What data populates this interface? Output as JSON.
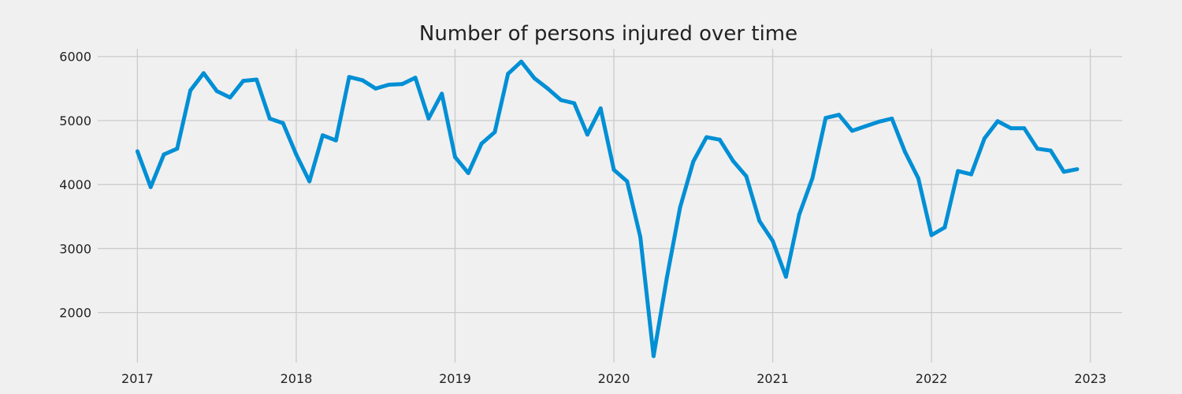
{
  "chart_data": {
    "type": "line",
    "title": "Number of persons injured over time",
    "xlabel": "",
    "ylabel": "",
    "x_ticks": [
      "2017",
      "2018",
      "2019",
      "2020",
      "2021",
      "2022",
      "2023"
    ],
    "y_ticks": [
      "2000",
      "3000",
      "4000",
      "5000",
      "6000"
    ],
    "xlim": [
      "2016-10",
      "2023-03"
    ],
    "ylim": [
      1220,
      6120
    ],
    "grid": true,
    "colors": {
      "background": "#f0f0f0",
      "grid": "#cbcbcb",
      "line": "#008fd5",
      "text": "#222222"
    },
    "series": [
      {
        "name": "",
        "x": [
          "2017-01",
          "2017-02",
          "2017-03",
          "2017-04",
          "2017-05",
          "2017-06",
          "2017-07",
          "2017-08",
          "2017-09",
          "2017-10",
          "2017-11",
          "2017-12",
          "2018-01",
          "2018-02",
          "2018-03",
          "2018-04",
          "2018-05",
          "2018-06",
          "2018-07",
          "2018-08",
          "2018-09",
          "2018-10",
          "2018-11",
          "2018-12",
          "2019-01",
          "2019-02",
          "2019-03",
          "2019-04",
          "2019-05",
          "2019-06",
          "2019-07",
          "2019-08",
          "2019-09",
          "2019-10",
          "2019-11",
          "2019-12",
          "2020-01",
          "2020-02",
          "2020-03",
          "2020-04",
          "2020-05",
          "2020-06",
          "2020-07",
          "2020-08",
          "2020-09",
          "2020-10",
          "2020-11",
          "2020-12",
          "2021-01",
          "2021-02",
          "2021-03",
          "2021-04",
          "2021-05",
          "2021-06",
          "2021-07",
          "2021-08",
          "2021-09",
          "2021-10",
          "2021-11",
          "2021-12",
          "2022-01",
          "2022-02",
          "2022-03",
          "2022-04",
          "2022-05",
          "2022-06",
          "2022-07",
          "2022-08",
          "2022-09",
          "2022-10",
          "2022-11",
          "2022-12"
        ],
        "values": [
          4520,
          3960,
          4470,
          4560,
          5470,
          5740,
          5460,
          5360,
          5620,
          5640,
          5030,
          4960,
          4470,
          4050,
          4770,
          4690,
          5680,
          5630,
          5500,
          5560,
          5570,
          5670,
          5030,
          5420,
          4430,
          4180,
          4640,
          4820,
          5730,
          5920,
          5660,
          5500,
          5320,
          5270,
          4780,
          5190,
          4230,
          4050,
          3180,
          1320,
          2540,
          3640,
          4360,
          4740,
          4700,
          4370,
          4130,
          3430,
          3120,
          2560,
          3530,
          4100,
          5040,
          5090,
          4840,
          4910,
          4980,
          5030,
          4510,
          4100,
          3210,
          3330,
          4210,
          4160,
          4720,
          4990,
          4880,
          4880,
          4560,
          4530,
          4200,
          4240
        ]
      }
    ]
  }
}
